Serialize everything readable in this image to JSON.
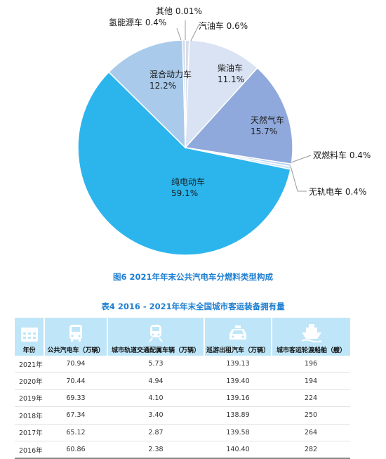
{
  "chart_data": {
    "type": "pie",
    "title": "图6  2021年年末公共汽电车分燃料类型构成",
    "slices": [
      {
        "label": "其他",
        "pct_text": "0.01%",
        "value": 0.01,
        "color": "#1f3b60"
      },
      {
        "label": "汽油车",
        "pct_text": "0.6%",
        "value": 0.6,
        "color": "#d9dde8"
      },
      {
        "label": "柴油车",
        "pct_text": "11.1%",
        "value": 11.1,
        "color": "#d9e3f3"
      },
      {
        "label": "天然气车",
        "pct_text": "15.7%",
        "value": 15.7,
        "color": "#8fa9dc"
      },
      {
        "label": "双燃料车",
        "pct_text": "0.4%",
        "value": 0.4,
        "color": "#bcd3ee"
      },
      {
        "label": "无轨电车",
        "pct_text": "0.4%",
        "value": 0.4,
        "color": "#c6e2f5"
      },
      {
        "label": "纯电动车",
        "pct_text": "59.1%",
        "value": 59.1,
        "color": "#2cb5ec"
      },
      {
        "label": "混合动力车",
        "pct_text": "12.2%",
        "value": 12.2,
        "color": "#a9caea"
      },
      {
        "label": "氢能源车",
        "pct_text": "0.4%",
        "value": 0.4,
        "color": "#c9d9ee"
      }
    ]
  },
  "table": {
    "caption": "表4  2016 - 2021年年末全国城市客运装备拥有量",
    "headers": [
      "年份",
      "公共汽电车（万辆）",
      "城市轨道交通配属车辆（万辆）",
      "巡游出租汽车（万辆）",
      "城市客运轮渡船舶（艘）"
    ],
    "header_icons": [
      "calendar-icon",
      "bus-icon",
      "train-icon",
      "taxi-icon",
      "ferry-icon"
    ],
    "rows": [
      [
        "2021年",
        "70.94",
        "5.73",
        "139.13",
        "196"
      ],
      [
        "2020年",
        "70.44",
        "4.94",
        "139.40",
        "194"
      ],
      [
        "2019年",
        "69.33",
        "4.10",
        "139.16",
        "224"
      ],
      [
        "2018年",
        "67.34",
        "3.40",
        "138.89",
        "250"
      ],
      [
        "2017年",
        "65.12",
        "2.87",
        "139.58",
        "264"
      ],
      [
        "2016年",
        "60.86",
        "2.38",
        "140.40",
        "282"
      ]
    ]
  }
}
